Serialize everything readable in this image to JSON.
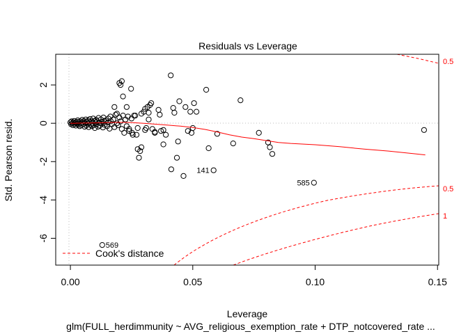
{
  "chart_data": {
    "type": "scatter",
    "title": "Residuals vs Leverage",
    "xlabel": "Leverage",
    "ylabel": "Std. Pearson resid.",
    "subtitle": "glm(FULL_herdimmunity ~ AVG_religious_exemption_rate + DTP_notcovered_rate  ...",
    "xlim": [
      -0.006,
      0.1505
    ],
    "ylim": [
      -7.4,
      3.6
    ],
    "x_ticks": [
      "0.00",
      "0.05",
      "0.10",
      "0.15"
    ],
    "x_tick_values": [
      0.0,
      0.05,
      0.1,
      0.15
    ],
    "y_ticks": [
      "2",
      "0",
      "-2",
      "-4",
      "-6"
    ],
    "y_tick_values": [
      2,
      0,
      -2,
      -4,
      -6
    ],
    "grid": false,
    "reference_lines": {
      "x": 0,
      "y": 0
    },
    "points": [
      {
        "x": 0.0,
        "y": 0.05
      },
      {
        "x": 0.0003,
        "y": -0.05
      },
      {
        "x": 0.0005,
        "y": 0.1
      },
      {
        "x": 0.0008,
        "y": 0.0
      },
      {
        "x": 0.001,
        "y": -0.1
      },
      {
        "x": 0.0012,
        "y": 0.05
      },
      {
        "x": 0.0015,
        "y": 0.12
      },
      {
        "x": 0.0018,
        "y": -0.05
      },
      {
        "x": 0.002,
        "y": 0.02
      },
      {
        "x": 0.0022,
        "y": -0.12
      },
      {
        "x": 0.0025,
        "y": 0.08
      },
      {
        "x": 0.0028,
        "y": -0.02
      },
      {
        "x": 0.003,
        "y": 0.15
      },
      {
        "x": 0.0033,
        "y": -0.08
      },
      {
        "x": 0.0035,
        "y": 0.05
      },
      {
        "x": 0.0038,
        "y": -0.15
      },
      {
        "x": 0.004,
        "y": 0.1
      },
      {
        "x": 0.0043,
        "y": 0.0
      },
      {
        "x": 0.0045,
        "y": -0.1
      },
      {
        "x": 0.0048,
        "y": 0.18
      },
      {
        "x": 0.005,
        "y": 0.05
      },
      {
        "x": 0.0053,
        "y": -0.05
      },
      {
        "x": 0.0055,
        "y": 0.12
      },
      {
        "x": 0.0058,
        "y": -0.18
      },
      {
        "x": 0.006,
        "y": 0.02
      },
      {
        "x": 0.0063,
        "y": 0.2
      },
      {
        "x": 0.0065,
        "y": -0.12
      },
      {
        "x": 0.0068,
        "y": 0.08
      },
      {
        "x": 0.007,
        "y": -0.02
      },
      {
        "x": 0.0073,
        "y": 0.15
      },
      {
        "x": 0.0075,
        "y": -0.2
      },
      {
        "x": 0.0078,
        "y": 0.05
      },
      {
        "x": 0.008,
        "y": 0.22
      },
      {
        "x": 0.0083,
        "y": -0.08
      },
      {
        "x": 0.0085,
        "y": 0.1
      },
      {
        "x": 0.0088,
        "y": -0.15
      },
      {
        "x": 0.009,
        "y": 0.0
      },
      {
        "x": 0.0093,
        "y": 0.25
      },
      {
        "x": 0.0095,
        "y": -0.1
      },
      {
        "x": 0.0098,
        "y": 0.12
      },
      {
        "x": 0.01,
        "y": -0.25
      },
      {
        "x": 0.0103,
        "y": 0.05
      },
      {
        "x": 0.0105,
        "y": 0.18
      },
      {
        "x": 0.0108,
        "y": -0.05
      },
      {
        "x": 0.011,
        "y": 0.1
      },
      {
        "x": 0.0113,
        "y": -0.18
      },
      {
        "x": 0.0115,
        "y": 0.28
      },
      {
        "x": 0.0118,
        "y": 0.02
      },
      {
        "x": 0.012,
        "y": -0.12
      },
      {
        "x": 0.0125,
        "y": 0.2
      },
      {
        "x": 0.0128,
        "y": -0.02
      },
      {
        "x": 0.013,
        "y": 0.08
      },
      {
        "x": 0.0133,
        "y": -0.22
      },
      {
        "x": 0.0135,
        "y": 0.3
      },
      {
        "x": 0.0138,
        "y": 0.12
      },
      {
        "x": 0.014,
        "y": -0.08
      },
      {
        "x": 0.0145,
        "y": 0.15
      },
      {
        "x": 0.015,
        "y": -0.15
      },
      {
        "x": 0.0153,
        "y": 0.05
      },
      {
        "x": 0.0155,
        "y": 0.25
      },
      {
        "x": 0.016,
        "y": -0.28
      },
      {
        "x": 0.0163,
        "y": 0.35
      },
      {
        "x": 0.0165,
        "y": 0.1
      },
      {
        "x": 0.017,
        "y": -0.05
      },
      {
        "x": 0.0175,
        "y": 0.2
      },
      {
        "x": 0.018,
        "y": -0.2
      },
      {
        "x": 0.0185,
        "y": 0.45
      },
      {
        "x": 0.019,
        "y": 0.0
      },
      {
        "x": 0.0195,
        "y": -0.1
      },
      {
        "x": 0.02,
        "y": 0.3
      },
      {
        "x": 0.0205,
        "y": 0.1
      },
      {
        "x": 0.021,
        "y": -0.3
      },
      {
        "x": 0.0215,
        "y": 0.4
      },
      {
        "x": 0.022,
        "y": -0.5
      },
      {
        "x": 0.0225,
        "y": 0.2
      },
      {
        "x": 0.023,
        "y": -0.15
      },
      {
        "x": 0.0235,
        "y": 0.35
      },
      {
        "x": 0.024,
        "y": -0.4
      },
      {
        "x": 0.025,
        "y": 0.25
      },
      {
        "x": 0.0255,
        "y": -0.6
      },
      {
        "x": 0.0265,
        "y": 0.4
      },
      {
        "x": 0.0275,
        "y": -0.25
      },
      {
        "x": 0.029,
        "y": 0.5
      },
      {
        "x": 0.0305,
        "y": -0.35
      },
      {
        "x": 0.032,
        "y": 0.2
      },
      {
        "x": 0.0345,
        "y": -0.45
      },
      {
        "x": 0.0365,
        "y": 0.45
      },
      {
        "x": 0.038,
        "y": -0.35
      },
      {
        "x": 0.018,
        "y": 0.85
      },
      {
        "x": 0.019,
        "y": 0.5
      },
      {
        "x": 0.02,
        "y": 2.1
      },
      {
        "x": 0.0205,
        "y": 2.0
      },
      {
        "x": 0.021,
        "y": 2.2
      },
      {
        "x": 0.0215,
        "y": 1.4
      },
      {
        "x": 0.023,
        "y": 0.85
      },
      {
        "x": 0.024,
        "y": -0.3
      },
      {
        "x": 0.0248,
        "y": 1.8
      },
      {
        "x": 0.0252,
        "y": -0.5
      },
      {
        "x": 0.026,
        "y": 0.4
      },
      {
        "x": 0.027,
        "y": -0.6
      },
      {
        "x": 0.0275,
        "y": -1.35
      },
      {
        "x": 0.028,
        "y": -1.8
      },
      {
        "x": 0.0285,
        "y": -1.45
      },
      {
        "x": 0.029,
        "y": -1.25
      },
      {
        "x": 0.03,
        "y": 0.6
      },
      {
        "x": 0.0305,
        "y": 0.75
      },
      {
        "x": 0.031,
        "y": -0.25
      },
      {
        "x": 0.0315,
        "y": 0.85
      },
      {
        "x": 0.032,
        "y": 0.55
      },
      {
        "x": 0.0325,
        "y": 0.95
      },
      {
        "x": 0.033,
        "y": 1.05
      },
      {
        "x": 0.0335,
        "y": -0.3
      },
      {
        "x": 0.0345,
        "y": -0.5
      },
      {
        "x": 0.036,
        "y": 0.7
      },
      {
        "x": 0.037,
        "y": -0.4
      },
      {
        "x": 0.038,
        "y": -1.1
      },
      {
        "x": 0.039,
        "y": -0.6
      },
      {
        "x": 0.041,
        "y": 2.5
      },
      {
        "x": 0.0412,
        "y": -2.4
      },
      {
        "x": 0.042,
        "y": 0.8
      },
      {
        "x": 0.0425,
        "y": 0.55
      },
      {
        "x": 0.0435,
        "y": -1.8
      },
      {
        "x": 0.044,
        "y": -0.95
      },
      {
        "x": 0.0445,
        "y": 1.15
      },
      {
        "x": 0.0462,
        "y": -2.75
      },
      {
        "x": 0.047,
        "y": 0.85
      },
      {
        "x": 0.048,
        "y": -0.4
      },
      {
        "x": 0.049,
        "y": 0.6
      },
      {
        "x": 0.0495,
        "y": -0.5
      },
      {
        "x": 0.05,
        "y": -0.25
      },
      {
        "x": 0.0505,
        "y": 1.05
      },
      {
        "x": 0.0515,
        "y": 0.6
      },
      {
        "x": 0.0555,
        "y": 1.75
      },
      {
        "x": 0.0565,
        "y": -1.3
      },
      {
        "x": 0.0585,
        "y": -2.45
      },
      {
        "x": 0.06,
        "y": -0.55
      },
      {
        "x": 0.0665,
        "y": -1.05
      },
      {
        "x": 0.0695,
        "y": 1.2
      },
      {
        "x": 0.077,
        "y": -0.5
      },
      {
        "x": 0.0808,
        "y": -1.0
      },
      {
        "x": 0.0815,
        "y": -1.25
      },
      {
        "x": 0.0825,
        "y": -1.6
      },
      {
        "x": 0.0995,
        "y": -3.1
      },
      {
        "x": 0.1445,
        "y": -0.35
      },
      {
        "x": 0.013,
        "y": -6.35
      }
    ],
    "point_labels": [
      {
        "label": "141",
        "x": 0.0585,
        "y": -2.45,
        "side": "left"
      },
      {
        "label": "585",
        "x": 0.0995,
        "y": -3.1,
        "side": "left"
      },
      {
        "label": "569",
        "x": 0.013,
        "y": -6.35,
        "side": "right"
      }
    ],
    "smooth_line": {
      "x": [
        0.0,
        0.005,
        0.01,
        0.015,
        0.02,
        0.025,
        0.03,
        0.035,
        0.04,
        0.045,
        0.05,
        0.055,
        0.06,
        0.065,
        0.07,
        0.075,
        0.08,
        0.085,
        0.09,
        0.1,
        0.11,
        0.12,
        0.13,
        0.14,
        0.145
      ],
      "y": [
        0.0,
        0.01,
        0.02,
        0.03,
        0.05,
        0.04,
        0.0,
        -0.05,
        -0.1,
        -0.15,
        -0.22,
        -0.32,
        -0.45,
        -0.6,
        -0.72,
        -0.8,
        -0.9,
        -1.0,
        -1.05,
        -1.12,
        -1.22,
        -1.35,
        -1.45,
        -1.58,
        -1.65
      ]
    },
    "cooks_distance": {
      "legend_label": "Cook's distance",
      "legend_position": "bottom-left",
      "labels": [
        "0.5",
        "0.5",
        "1"
      ]
    }
  }
}
